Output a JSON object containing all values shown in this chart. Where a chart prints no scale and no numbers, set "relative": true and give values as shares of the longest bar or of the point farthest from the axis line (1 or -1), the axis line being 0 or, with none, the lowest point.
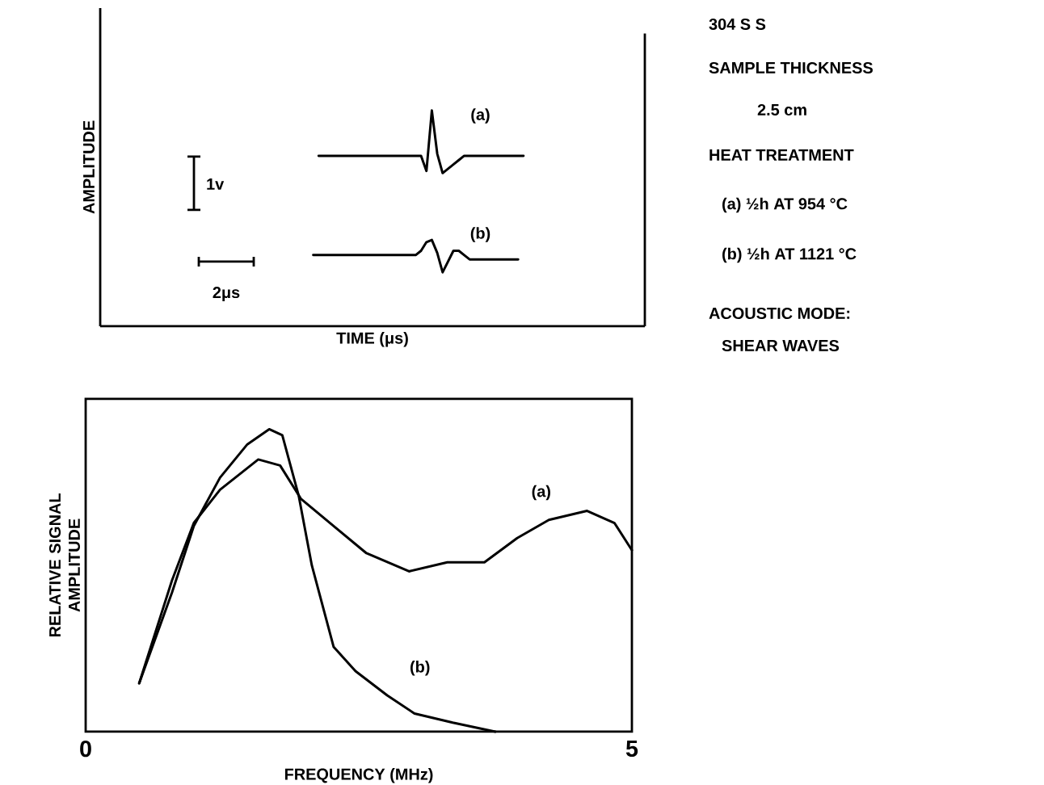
{
  "chart_data": [
    {
      "type": "line",
      "relative": true,
      "xlabel": "TIME (μs)",
      "ylabel": "AMPLITUDE",
      "categories": [
        null,
        null,
        null,
        null,
        null,
        null,
        null,
        null,
        null,
        null,
        null,
        null,
        null,
        null,
        null,
        null,
        null,
        null,
        null,
        null,
        null,
        null,
        null,
        null,
        null,
        null,
        null,
        null,
        null,
        null,
        null,
        null,
        null,
        null,
        null,
        null,
        null,
        null,
        null,
        null,
        null,
        null,
        null,
        null,
        null,
        null,
        null,
        null,
        null,
        null,
        null,
        null,
        null,
        null,
        null,
        null,
        null,
        null,
        null,
        null,
        null,
        null,
        null,
        null,
        null,
        null,
        null,
        null,
        null,
        null,
        null,
        null,
        null,
        null,
        null,
        null,
        null,
        null,
        null,
        null,
        null,
        null,
        null,
        null,
        null,
        null,
        null,
        null,
        null,
        null,
        null,
        null,
        null,
        null,
        null,
        null,
        null,
        null,
        null,
        null,
        null
      ],
      "series": [
        {
          "name": "(a)",
          "color": "#000000",
          "values": [
            null,
            null,
            null,
            null,
            null,
            null,
            null,
            null,
            null,
            null,
            null,
            null,
            null,
            null,
            null,
            null,
            null,
            null,
            null,
            null,
            null,
            null,
            null,
            null,
            null,
            null,
            null,
            null,
            null,
            null,
            null,
            null,
            null,
            null,
            null,
            null,
            null,
            null,
            null,
            null,
            0.79,
            0.79,
            0.79,
            0.79,
            0.79,
            0.79,
            0.79,
            0.79,
            0.79,
            0.79,
            0.79,
            0.79,
            0.79,
            0.79,
            0.79,
            0.79,
            0.79,
            0.79,
            0.79,
            0.79,
            0.72,
            1.0,
            0.8,
            0.71,
            0.73,
            0.75,
            0.77,
            0.79,
            0.79,
            0.79,
            0.79,
            0.79,
            0.79,
            0.79,
            0.79,
            0.79,
            0.79,
            0.79,
            0.79,
            null,
            null,
            null,
            null,
            null,
            null,
            null,
            null,
            null,
            null,
            null,
            null,
            null,
            null,
            null,
            null,
            null,
            null,
            null,
            null,
            null,
            null
          ]
        },
        {
          "name": "(b)",
          "color": "#000000",
          "values": [
            null,
            null,
            null,
            null,
            null,
            null,
            null,
            null,
            null,
            null,
            null,
            null,
            null,
            null,
            null,
            null,
            null,
            null,
            null,
            null,
            null,
            null,
            null,
            null,
            null,
            null,
            null,
            null,
            null,
            null,
            null,
            null,
            null,
            null,
            null,
            null,
            null,
            null,
            null,
            0.33,
            0.33,
            0.33,
            0.33,
            0.33,
            0.33,
            0.33,
            0.33,
            0.33,
            0.33,
            0.33,
            0.33,
            0.33,
            0.33,
            0.33,
            0.33,
            0.33,
            0.33,
            0.33,
            0.33,
            0.35,
            0.39,
            0.4,
            0.34,
            0.25,
            0.3,
            0.35,
            0.35,
            0.33,
            0.31,
            0.31,
            0.31,
            0.31,
            0.31,
            0.31,
            0.31,
            0.31,
            0.31,
            0.31,
            null,
            null,
            null,
            null,
            null,
            null,
            null,
            null,
            null,
            null,
            null,
            null,
            null,
            null,
            null,
            null,
            null,
            null,
            null,
            null,
            null,
            null,
            null
          ]
        }
      ],
      "annotations": [
        "1v",
        "2μs"
      ]
    },
    {
      "type": "line",
      "relative": true,
      "xlabel": "FREQUENCY (MHz)",
      "ylabel": "RELATIVE SIGNAL AMPLITUDE",
      "xlim": [
        0,
        5
      ],
      "xticks": [
        0,
        5
      ],
      "series": [
        {
          "name": "(a)",
          "color": "#000000",
          "x": [
            0.49,
            0.79,
            0.99,
            1.23,
            1.58,
            1.78,
            1.97,
            2.27,
            2.57,
            2.96,
            3.31,
            3.65,
            3.95,
            4.24,
            4.59,
            4.84,
            5.0
          ],
          "values": [
            0.16,
            0.5,
            0.69,
            0.8,
            0.9,
            0.88,
            0.77,
            0.68,
            0.59,
            0.53,
            0.56,
            0.56,
            0.64,
            0.7,
            0.73,
            0.69,
            0.6
          ]
        },
        {
          "name": "(b)",
          "color": "#000000",
          "x": [
            0.49,
            0.79,
            0.99,
            1.23,
            1.48,
            1.68,
            1.8,
            1.95,
            2.07,
            2.27,
            2.47,
            2.76,
            3.01,
            3.36,
            3.75
          ],
          "values": [
            0.16,
            0.46,
            0.68,
            0.84,
            0.95,
            1.0,
            0.98,
            0.78,
            0.55,
            0.28,
            0.2,
            0.12,
            0.06,
            0.03,
            0.0
          ]
        }
      ]
    },
    {
      "type": "other",
      "annotations": [
        "304 S S",
        "SAMPLE THICKNESS",
        "2.5 cm",
        "HEAT TREATMENT",
        "(a) ½h AT 954 °C",
        "(b) ½h AT 1121 °C",
        "ACOUSTIC MODE:",
        "SHEAR WAVES"
      ]
    }
  ]
}
